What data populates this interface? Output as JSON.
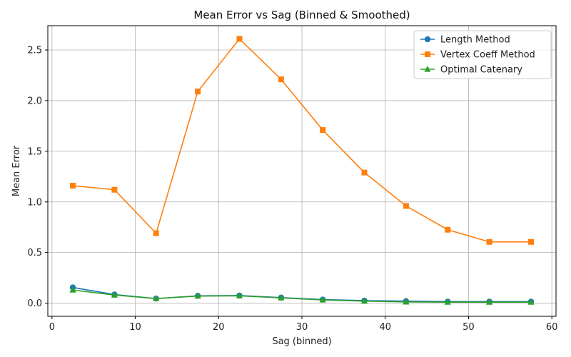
{
  "chart_data": {
    "type": "line",
    "title": "Mean Error vs Sag (Binned & Smoothed)",
    "xlabel": "Sag (binned)",
    "ylabel": "Mean Error",
    "xlim": [
      -0.5,
      60.5
    ],
    "ylim": [
      -0.13,
      2.74
    ],
    "x_ticks": [
      0,
      10,
      20,
      30,
      40,
      50,
      60
    ],
    "y_ticks": [
      0.0,
      0.5,
      1.0,
      1.5,
      2.0,
      2.5
    ],
    "x_tick_labels": [
      "0",
      "10",
      "20",
      "30",
      "40",
      "50",
      "60"
    ],
    "y_tick_labels": [
      "0.0",
      "0.5",
      "1.0",
      "1.5",
      "2.0",
      "2.5"
    ],
    "grid": true,
    "legend_position": "top-right",
    "x": [
      2.5,
      7.5,
      12.5,
      17.5,
      22.5,
      27.5,
      32.5,
      37.5,
      42.5,
      47.5,
      52.5,
      57.5
    ],
    "series": [
      {
        "name": "Length Method",
        "color": "#1f77b4",
        "marker": "circle",
        "values": [
          0.155,
          0.085,
          0.045,
          0.072,
          0.075,
          0.055,
          0.035,
          0.025,
          0.02,
          0.015,
          0.015,
          0.015
        ]
      },
      {
        "name": "Vertex Coeff Method",
        "color": "#ff7f0e",
        "marker": "square",
        "values": [
          1.16,
          1.12,
          0.69,
          2.09,
          2.61,
          2.21,
          1.71,
          1.29,
          0.96,
          0.725,
          0.605,
          0.605
        ]
      },
      {
        "name": "Optimal Catenary",
        "color": "#2ca02c",
        "marker": "triangle",
        "values": [
          0.13,
          0.08,
          0.045,
          0.07,
          0.072,
          0.052,
          0.032,
          0.02,
          0.012,
          0.01,
          0.01,
          0.01
        ]
      }
    ]
  }
}
